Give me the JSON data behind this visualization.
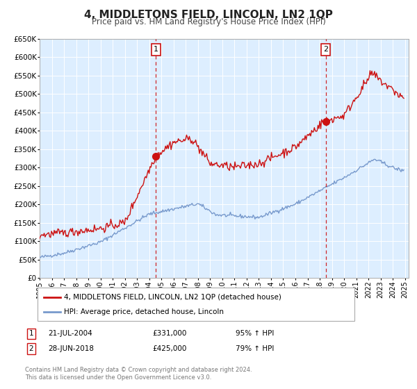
{
  "title": "4, MIDDLETONS FIELD, LINCOLN, LN2 1QP",
  "subtitle": "Price paid vs. HM Land Registry's House Price Index (HPI)",
  "title_fontsize": 11,
  "subtitle_fontsize": 8.5,
  "background_color": "#ffffff",
  "plot_bg_color": "#ddeeff",
  "grid_color": "#ffffff",
  "hpi_color": "#7799cc",
  "price_color": "#cc1111",
  "ylim": [
    0,
    650000
  ],
  "yticks": [
    0,
    50000,
    100000,
    150000,
    200000,
    250000,
    300000,
    350000,
    400000,
    450000,
    500000,
    550000,
    600000,
    650000
  ],
  "xlim_start": 1995.0,
  "xlim_end": 2025.3,
  "marker1_x": 2004.55,
  "marker1_y": 331000,
  "marker2_x": 2018.49,
  "marker2_y": 425000,
  "legend_property_label": "4, MIDDLETONS FIELD, LINCOLN, LN2 1QP (detached house)",
  "legend_hpi_label": "HPI: Average price, detached house, Lincoln",
  "note1_label": "1",
  "note1_date": "21-JUL-2004",
  "note1_price": "£331,000",
  "note1_pct": "95% ↑ HPI",
  "note2_label": "2",
  "note2_date": "28-JUN-2018",
  "note2_price": "£425,000",
  "note2_pct": "79% ↑ HPI",
  "footer1": "Contains HM Land Registry data © Crown copyright and database right 2024.",
  "footer2": "This data is licensed under the Open Government Licence v3.0."
}
